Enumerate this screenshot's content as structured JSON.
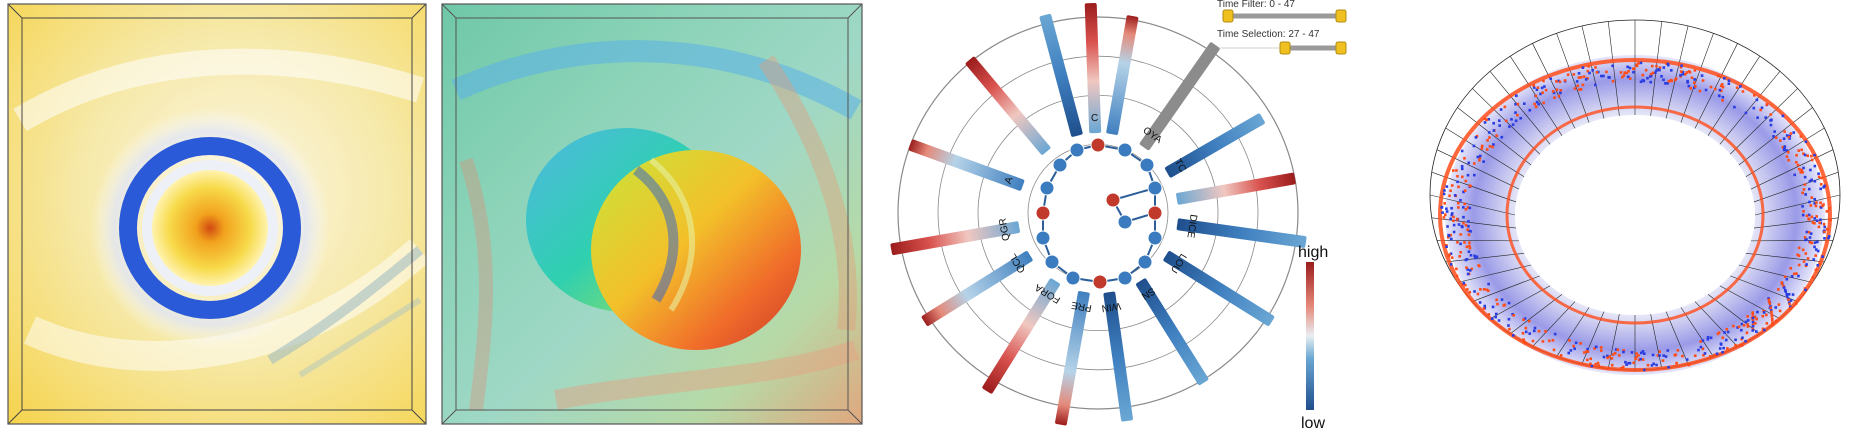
{
  "colors": {
    "low": "#1f4e8c",
    "mid": "#b5d3e8",
    "high": "#9b1c1c",
    "yellow": "#f5cf3b",
    "blue_ring": "#2a5ad8",
    "orange": "#ff4d1a",
    "gray": "#888888"
  },
  "radial": {
    "axis_labels": [
      "OYA",
      "TC",
      "DICE",
      "LOU",
      "SN",
      "WIN",
      "PRE",
      "FORA",
      "QCL",
      "QGR",
      "A",
      "C"
    ],
    "colorbar": {
      "high_label": "high",
      "low_label": "low"
    }
  },
  "sliders": {
    "time_filter_label": "Time Filter: 0 - 47",
    "time_selection_label": "Time Selection: 27 - 47"
  }
}
